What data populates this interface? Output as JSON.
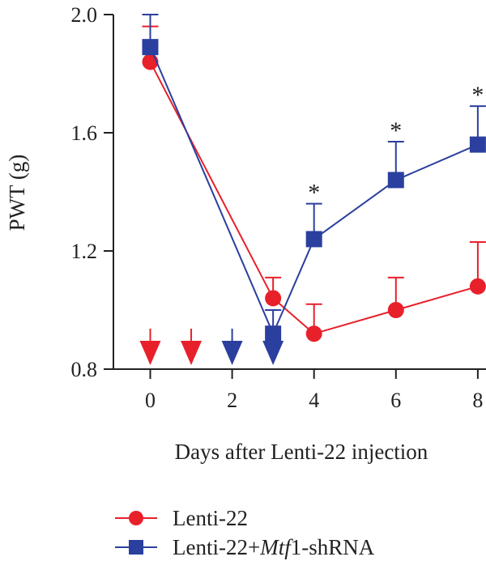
{
  "chart_data": {
    "type": "line",
    "title": "",
    "xlabel": "Days after Lenti-22 injection",
    "ylabel": "PWT (g)",
    "xlim": [
      -0.9,
      8.2
    ],
    "ylim": [
      0.8,
      2.0
    ],
    "x_ticks": [
      "0",
      "2",
      "4",
      "6",
      "8"
    ],
    "y_ticks": [
      "0.8",
      "1.2",
      "1.6",
      "2.0"
    ],
    "grid": false,
    "legend": "bottom",
    "series": [
      {
        "name": "Lenti-22",
        "color": "#e8202a",
        "marker": "circle",
        "x": [
          0,
          3,
          4,
          6,
          8
        ],
        "y": [
          1.84,
          1.04,
          0.92,
          1.0,
          1.08
        ],
        "err": [
          0.12,
          0.07,
          0.1,
          0.11,
          0.15
        ]
      },
      {
        "name_prefix": "Lenti-22+",
        "name_italic": "Mtf",
        "name_suffix": "1-shRNA",
        "color": "#2b3f9e",
        "marker": "square",
        "x": [
          0,
          3,
          4,
          6,
          8
        ],
        "y": [
          1.89,
          0.92,
          1.24,
          1.44,
          1.56
        ],
        "err": [
          0.11,
          0.08,
          0.12,
          0.13,
          0.13
        ]
      }
    ],
    "significance": [
      {
        "x": 4,
        "label": "*"
      },
      {
        "x": 6,
        "label": "*"
      },
      {
        "x": 8,
        "label": "*"
      }
    ],
    "injection_arrows": [
      {
        "x": 0,
        "color": "#e8202a"
      },
      {
        "x": 1,
        "color": "#e8202a"
      },
      {
        "x": 2,
        "color": "#2b3f9e"
      },
      {
        "x": 3,
        "color": "#2b3f9e"
      }
    ]
  }
}
